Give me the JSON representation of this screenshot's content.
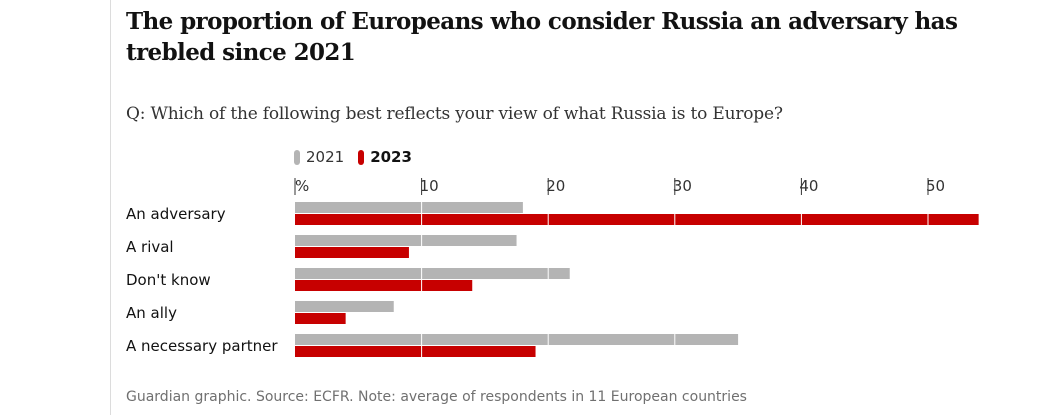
{
  "title": "The proportion of Europeans who consider Russia an adversary has trebled since 2021",
  "subtitle": "Q: Which of the following best reflects your view of what Russia is to Europe?",
  "footer": "Guardian graphic. Source: ECFR. Note: average of respondents in 11 European countries",
  "colors": {
    "series_2021": "#b4b4b4",
    "series_2023": "#c70000",
    "gridline": "#ffffff",
    "left_rule": "#dcdcdc"
  },
  "chart_data": {
    "type": "bar",
    "orientation": "horizontal",
    "categories": [
      "An adversary",
      "A rival",
      "Don't know",
      "An ally",
      "A necessary partner"
    ],
    "series": [
      {
        "name": "2021",
        "values": [
          18,
          17.5,
          21.7,
          7.8,
          35
        ]
      },
      {
        "name": "2023",
        "values": [
          54,
          9,
          14,
          4,
          19
        ]
      }
    ],
    "x_unit_label": "%",
    "x_ticks": [
      10,
      20,
      30,
      40,
      50
    ],
    "xlim": [
      0,
      54
    ],
    "grid": true,
    "legend_position": "top-left"
  }
}
